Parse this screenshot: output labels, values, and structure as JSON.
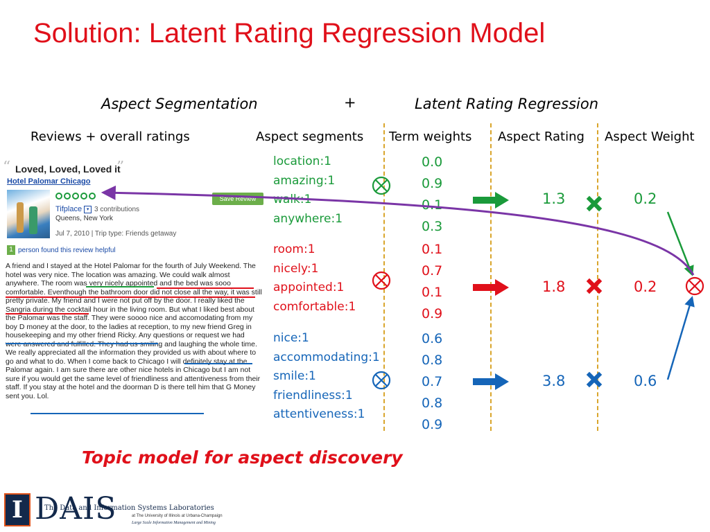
{
  "title": "Solution: Latent Rating Regression Model",
  "stages": {
    "left": "Aspect Segmentation",
    "plus": "+",
    "right": "Latent Rating Regression"
  },
  "headers": {
    "reviews": "Reviews  + overall ratings",
    "segments": "Aspect segments",
    "weights": "Term weights",
    "rating": "Aspect Rating",
    "aspect_weight": "Aspect Weight"
  },
  "review": {
    "title": "Loved, Loved, Loved it",
    "hotel": "Hotel Palomar Chicago",
    "save_label": "Save Review",
    "user": "Tifplace",
    "contributions": "3 contributions",
    "location": "Queens, New York",
    "date": "Jul 7, 2010 | Trip type: Friends getaway",
    "helpful_count": "1",
    "helpful_text": "person found this review helpful",
    "body": "A friend and I stayed at the Hotel Palomar for the fourth of July Weekend. The hotel was very nice. The location was amazing. We could walk almost anywhere. The room was very nicely appointed and the bed was sooo comfortable. Eventhough the bathroom door did not close all the way, it was still pretty private. My friend and I were not put off by the door. I really liked the Sangria during the cocktail hour in the living room. But what I liked best about the Palomar was the staff. They were soooo nice and accomodating from my boy D money at the door, to the ladies at reception, to my new friend Greg in housekeeping and my other friend Ricky. Any questions or request we had were answered and fulfilled. They had us smiling and laughing the whole time. We really appreciated all the information they provided us with about where to go and what to do. When I come back to Chicago I will definitely stay at the Palomar again. I am sure there are other nice hotels in Chicago but I am not sure if you would get the same level of friendliness and attentiveness from their staff. If you stay at the hotel and the doorman D is there tell him that G Money sent you. Lol."
  },
  "groups": [
    {
      "color": "#1a9a3a",
      "terms": [
        "location:1",
        "amazing:1",
        "walk:1",
        "anywhere:1"
      ],
      "weights": [
        "0.0",
        "0.9",
        "0.1",
        "0.3"
      ],
      "rating": "1.3",
      "aspect_weight": "0.2"
    },
    {
      "color": "#e0101a",
      "terms": [
        "room:1",
        "nicely:1",
        "appointed:1",
        "comfortable:1"
      ],
      "weights": [
        "0.1",
        "0.7",
        "0.1",
        "0.9"
      ],
      "rating": "1.8",
      "aspect_weight": "0.2"
    },
    {
      "color": "#1565b8",
      "terms": [
        "nice:1",
        "accommodating:1",
        "smile:1",
        "friendliness:1",
        "attentiveness:1"
      ],
      "weights": [
        "0.6",
        "0.8",
        "0.7",
        "0.8",
        "0.9"
      ],
      "rating": "3.8",
      "aspect_weight": "0.6"
    }
  ],
  "caption": "Topic model for aspect discovery",
  "logo": {
    "letter": "I",
    "name": "DAIS",
    "line1": "The Data and Information Systems Laboratories",
    "line2": "at The University of Illinois at Urbana-Champaign",
    "line3": "Large Scale Information Management and Mining"
  },
  "colors": {
    "title": "#e0101a",
    "green": "#1a9a3a",
    "red": "#e0101a",
    "blue": "#1565b8",
    "purple": "#7a35a6",
    "dash": "#d9a52b"
  }
}
